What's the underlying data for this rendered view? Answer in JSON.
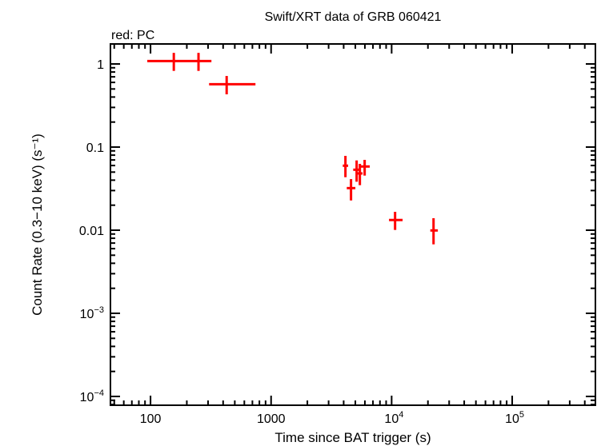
{
  "chart_data": {
    "type": "scatter",
    "title": "Swift/XRT data of GRB 060421",
    "subtitle": "red: PC",
    "xlabel": "Time since BAT trigger (s)",
    "ylabel": "Count Rate (0.3−10 keV) (s⁻¹)",
    "xscale": "log",
    "yscale": "log",
    "xlim": [
      46.5,
      490000
    ],
    "ylim": [
      7.84e-05,
      1.74
    ],
    "grid": false,
    "x_ticks": [
      {
        "value": 100,
        "label": "100"
      },
      {
        "value": 1000,
        "label": "1000"
      },
      {
        "value": 10000,
        "label": "10",
        "sup": "4"
      },
      {
        "value": 100000,
        "label": "10",
        "sup": "5"
      }
    ],
    "y_ticks": [
      {
        "value": 1,
        "label": "1"
      },
      {
        "value": 0.1,
        "label": "0.1"
      },
      {
        "value": 0.01,
        "label": "0.01"
      },
      {
        "value": 0.001,
        "label": "10",
        "sup": "−3"
      },
      {
        "value": 0.0001,
        "label": "10",
        "sup": "−4"
      }
    ],
    "series": [
      {
        "color": "#ff0000",
        "marker": "errorbar-cross",
        "points": [
          {
            "x": 156,
            "xlo": 94,
            "xhi": 250,
            "y": 1.085,
            "ylo": 0.825,
            "yhi": 1.36
          },
          {
            "x": 250,
            "xlo": 250,
            "xhi": 320,
            "y": 1.085,
            "ylo": 0.825,
            "yhi": 1.36
          },
          {
            "x": 428,
            "xlo": 306,
            "xhi": 742,
            "y": 0.571,
            "ylo": 0.431,
            "yhi": 0.717
          },
          {
            "x": 4137,
            "xlo": 3933,
            "xhi": 4357,
            "y": 0.0597,
            "ylo": 0.0434,
            "yhi": 0.0784
          },
          {
            "x": 4603,
            "xlo": 4246,
            "xhi": 5002,
            "y": 0.0321,
            "ylo": 0.0228,
            "yhi": 0.0412
          },
          {
            "x": 5124,
            "xlo": 4800,
            "xhi": 5425,
            "y": 0.0534,
            "ylo": 0.0383,
            "yhi": 0.0691
          },
          {
            "x": 5450,
            "xlo": 5203,
            "xhi": 5738,
            "y": 0.0482,
            "ylo": 0.0348,
            "yhi": 0.0628
          },
          {
            "x": 5972,
            "xlo": 5450,
            "xhi": 6587,
            "y": 0.0584,
            "ylo": 0.0454,
            "yhi": 0.0702
          },
          {
            "x": 10680,
            "xlo": 9510,
            "xhi": 12330,
            "y": 0.01325,
            "ylo": 0.01007,
            "yhi": 0.01664
          },
          {
            "x": 22260,
            "xlo": 20930,
            "xhi": 24170,
            "y": 0.00993,
            "ylo": 0.00676,
            "yhi": 0.01394
          }
        ]
      }
    ]
  }
}
